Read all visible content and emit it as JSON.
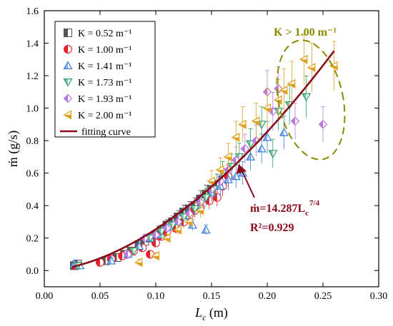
{
  "chart_data": {
    "type": "scatter",
    "xlabel_main": "L",
    "xlabel_sub": "c",
    "xlabel_unit": " (m)",
    "ylabel": "ṁ (g/s)",
    "xlim": [
      0.0,
      0.3
    ],
    "ylim": [
      -0.1,
      1.6
    ],
    "x_ticks": [
      "0.00",
      "0.05",
      "0.10",
      "0.15",
      "0.20",
      "0.25",
      "0.30"
    ],
    "y_ticks": [
      "0.0",
      "0.2",
      "0.4",
      "0.6",
      "0.8",
      "1.0",
      "1.2",
      "1.4",
      "1.6"
    ],
    "grid": false,
    "legend_position": "top-left",
    "series": [
      {
        "name": "K = 0.52 m⁻¹",
        "color": "#555555",
        "marker": "square-half",
        "points": [
          [
            0.027,
            0.03
          ],
          [
            0.03,
            0.04
          ],
          [
            0.055,
            0.06
          ],
          [
            0.065,
            0.08
          ],
          [
            0.072,
            0.1
          ],
          [
            0.078,
            0.12
          ],
          [
            0.085,
            0.16
          ],
          [
            0.09,
            0.18
          ],
          [
            0.095,
            0.2
          ],
          [
            0.1,
            0.22
          ],
          [
            0.105,
            0.25
          ],
          [
            0.11,
            0.28
          ],
          [
            0.115,
            0.3
          ],
          [
            0.12,
            0.33
          ],
          [
            0.125,
            0.36
          ],
          [
            0.13,
            0.38
          ],
          [
            0.135,
            0.4
          ],
          [
            0.14,
            0.44
          ],
          [
            0.145,
            0.47
          ],
          [
            0.15,
            0.5
          ],
          [
            0.155,
            0.53
          ],
          [
            0.16,
            0.56
          ]
        ]
      },
      {
        "name": "K = 1.00 m⁻¹",
        "color": "#E8202A",
        "marker": "circle-half",
        "points": [
          [
            0.028,
            0.03
          ],
          [
            0.05,
            0.05
          ],
          [
            0.06,
            0.07
          ],
          [
            0.07,
            0.09
          ],
          [
            0.08,
            0.12
          ],
          [
            0.088,
            0.14
          ],
          [
            0.095,
            0.1
          ],
          [
            0.1,
            0.17
          ],
          [
            0.105,
            0.21
          ],
          [
            0.11,
            0.24
          ],
          [
            0.118,
            0.26
          ],
          [
            0.125,
            0.3
          ],
          [
            0.13,
            0.34
          ],
          [
            0.135,
            0.37
          ],
          [
            0.14,
            0.39
          ],
          [
            0.148,
            0.43
          ],
          [
            0.155,
            0.45
          ],
          [
            0.16,
            0.52
          ],
          [
            0.165,
            0.58
          ]
        ]
      },
      {
        "name": "K = 1.41 m⁻¹",
        "color": "#3A7FE0",
        "marker": "triangle-up",
        "points": [
          [
            0.027,
            0.04
          ],
          [
            0.032,
            0.03
          ],
          [
            0.06,
            0.06
          ],
          [
            0.075,
            0.1
          ],
          [
            0.085,
            0.15
          ],
          [
            0.095,
            0.2
          ],
          [
            0.105,
            0.22
          ],
          [
            0.112,
            0.27
          ],
          [
            0.12,
            0.3
          ],
          [
            0.128,
            0.34
          ],
          [
            0.133,
            0.28
          ],
          [
            0.14,
            0.4
          ],
          [
            0.145,
            0.25
          ],
          [
            0.15,
            0.48
          ],
          [
            0.158,
            0.52
          ],
          [
            0.165,
            0.56
          ],
          [
            0.172,
            0.58
          ],
          [
            0.178,
            0.6
          ],
          [
            0.185,
            0.7
          ],
          [
            0.195,
            0.75
          ],
          [
            0.2,
            0.82
          ],
          [
            0.215,
            0.85
          ]
        ]
      },
      {
        "name": "K = 1.73 m⁻¹",
        "color": "#2E9E6A",
        "marker": "triangle-down",
        "points": [
          [
            0.03,
            0.03
          ],
          [
            0.08,
            0.12
          ],
          [
            0.095,
            0.2
          ],
          [
            0.105,
            0.24
          ],
          [
            0.115,
            0.28
          ],
          [
            0.125,
            0.33
          ],
          [
            0.135,
            0.38
          ],
          [
            0.145,
            0.45
          ],
          [
            0.152,
            0.5
          ],
          [
            0.16,
            0.6
          ],
          [
            0.168,
            0.64
          ],
          [
            0.175,
            0.7
          ],
          [
            0.185,
            0.78
          ],
          [
            0.195,
            0.9
          ],
          [
            0.205,
            0.72
          ],
          [
            0.21,
            0.98
          ],
          [
            0.22,
            1.02
          ],
          [
            0.235,
            1.07
          ]
        ]
      },
      {
        "name": "K = 1.93 m⁻¹",
        "color": "#B97AE0",
        "marker": "diamond",
        "points": [
          [
            0.075,
            0.1
          ],
          [
            0.09,
            0.2
          ],
          [
            0.1,
            0.22
          ],
          [
            0.11,
            0.26
          ],
          [
            0.12,
            0.3
          ],
          [
            0.13,
            0.35
          ],
          [
            0.14,
            0.42
          ],
          [
            0.15,
            0.5
          ],
          [
            0.158,
            0.55
          ],
          [
            0.165,
            0.62
          ],
          [
            0.172,
            0.68
          ],
          [
            0.18,
            0.75
          ],
          [
            0.19,
            0.8
          ],
          [
            0.2,
            1.1
          ],
          [
            0.205,
            0.98
          ],
          [
            0.21,
            1.12
          ],
          [
            0.225,
            0.92
          ],
          [
            0.25,
            0.9
          ]
        ]
      },
      {
        "name": "K = 2.00 m⁻¹",
        "color": "#E0A020",
        "marker": "triangle-left",
        "points": [
          [
            0.085,
            0.05
          ],
          [
            0.1,
            0.09
          ],
          [
            0.11,
            0.2
          ],
          [
            0.12,
            0.25
          ],
          [
            0.13,
            0.3
          ],
          [
            0.14,
            0.37
          ],
          [
            0.15,
            0.55
          ],
          [
            0.158,
            0.62
          ],
          [
            0.165,
            0.7
          ],
          [
            0.172,
            0.82
          ],
          [
            0.178,
            0.9
          ],
          [
            0.19,
            0.92
          ],
          [
            0.2,
            1.0
          ],
          [
            0.21,
            1.05
          ],
          [
            0.215,
            1.11
          ],
          [
            0.222,
            1.15
          ],
          [
            0.233,
            1.3
          ],
          [
            0.24,
            1.25
          ],
          [
            0.26,
            1.26
          ]
        ]
      }
    ],
    "fit": {
      "name": "fitting curve",
      "color": "#8B0A1A",
      "coefficient": 14.287,
      "exponent": 1.75,
      "x_range": [
        0.025,
        0.26
      ]
    },
    "annotations": {
      "k_label": "K > 1.00 m⁻¹",
      "fit_equation_prefix": "ṁ=14.287L",
      "fit_equation_sub": "c",
      "fit_equation_sup": "7/4",
      "r2": "R²=0.929"
    }
  }
}
